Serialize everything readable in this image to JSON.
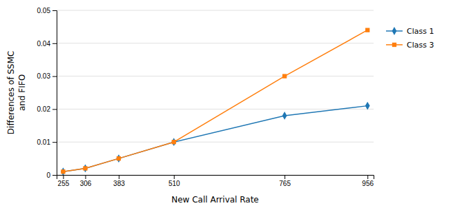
{
  "chart_data": {
    "type": "line",
    "x": [
      255,
      306,
      383,
      510,
      765,
      956
    ],
    "series": [
      {
        "name": "Class 1",
        "marker": "diamond",
        "values": [
          0.001,
          0.002,
          0.005,
          0.01,
          0.018,
          0.021
        ]
      },
      {
        "name": "Class 3",
        "marker": "square",
        "values": [
          0.001,
          0.002,
          0.005,
          0.01,
          0.03,
          0.044
        ]
      }
    ],
    "xlabel": "New Call Arrival Rate",
    "ylabel": [
      "Differences of SSMC",
      "and FIFO"
    ],
    "xlim": [
      240,
      970
    ],
    "xticks": [
      255,
      306,
      383,
      510,
      765,
      956
    ],
    "ylim": [
      0,
      0.05
    ],
    "yticks": [
      0,
      0.01,
      0.02,
      0.03,
      0.04,
      0.05
    ],
    "grid": true,
    "legend": "right"
  }
}
